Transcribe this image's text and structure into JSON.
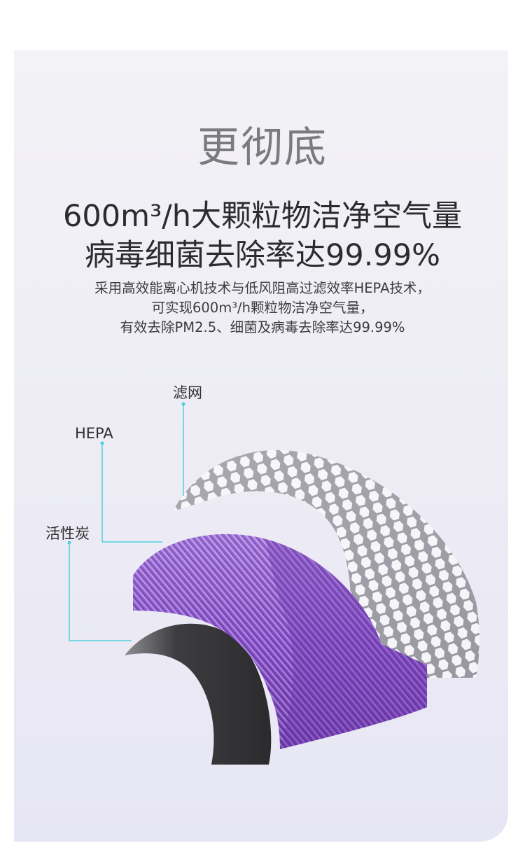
{
  "section": {
    "title": "更彻底",
    "headline_line1": "600m³/h大颗粒物洁净空气量",
    "headline_line2": "病毒细菌去除率达99.99%",
    "desc_line1": "采用高效能离心机技术与低风阻高过滤效率HEPA技术，",
    "desc_line2": "可实现600m³/h颗粒物洁净空气量，",
    "desc_line3": "有效去除PM2.5、细菌及病毒去除率达99.99%"
  },
  "diagram": {
    "labels": {
      "mesh": "滤网",
      "hepa": "HEPA",
      "carbon": "活性炭"
    },
    "colors": {
      "leader_line": "#4fd0dc",
      "hepa_purple": "#8a56c4",
      "carbon_dark": "#3a3a3c",
      "mesh_gray": "#cfcfd4"
    },
    "icons": [
      "mesh-filter-layer",
      "hepa-pleated-filter",
      "activated-carbon-layer"
    ]
  }
}
